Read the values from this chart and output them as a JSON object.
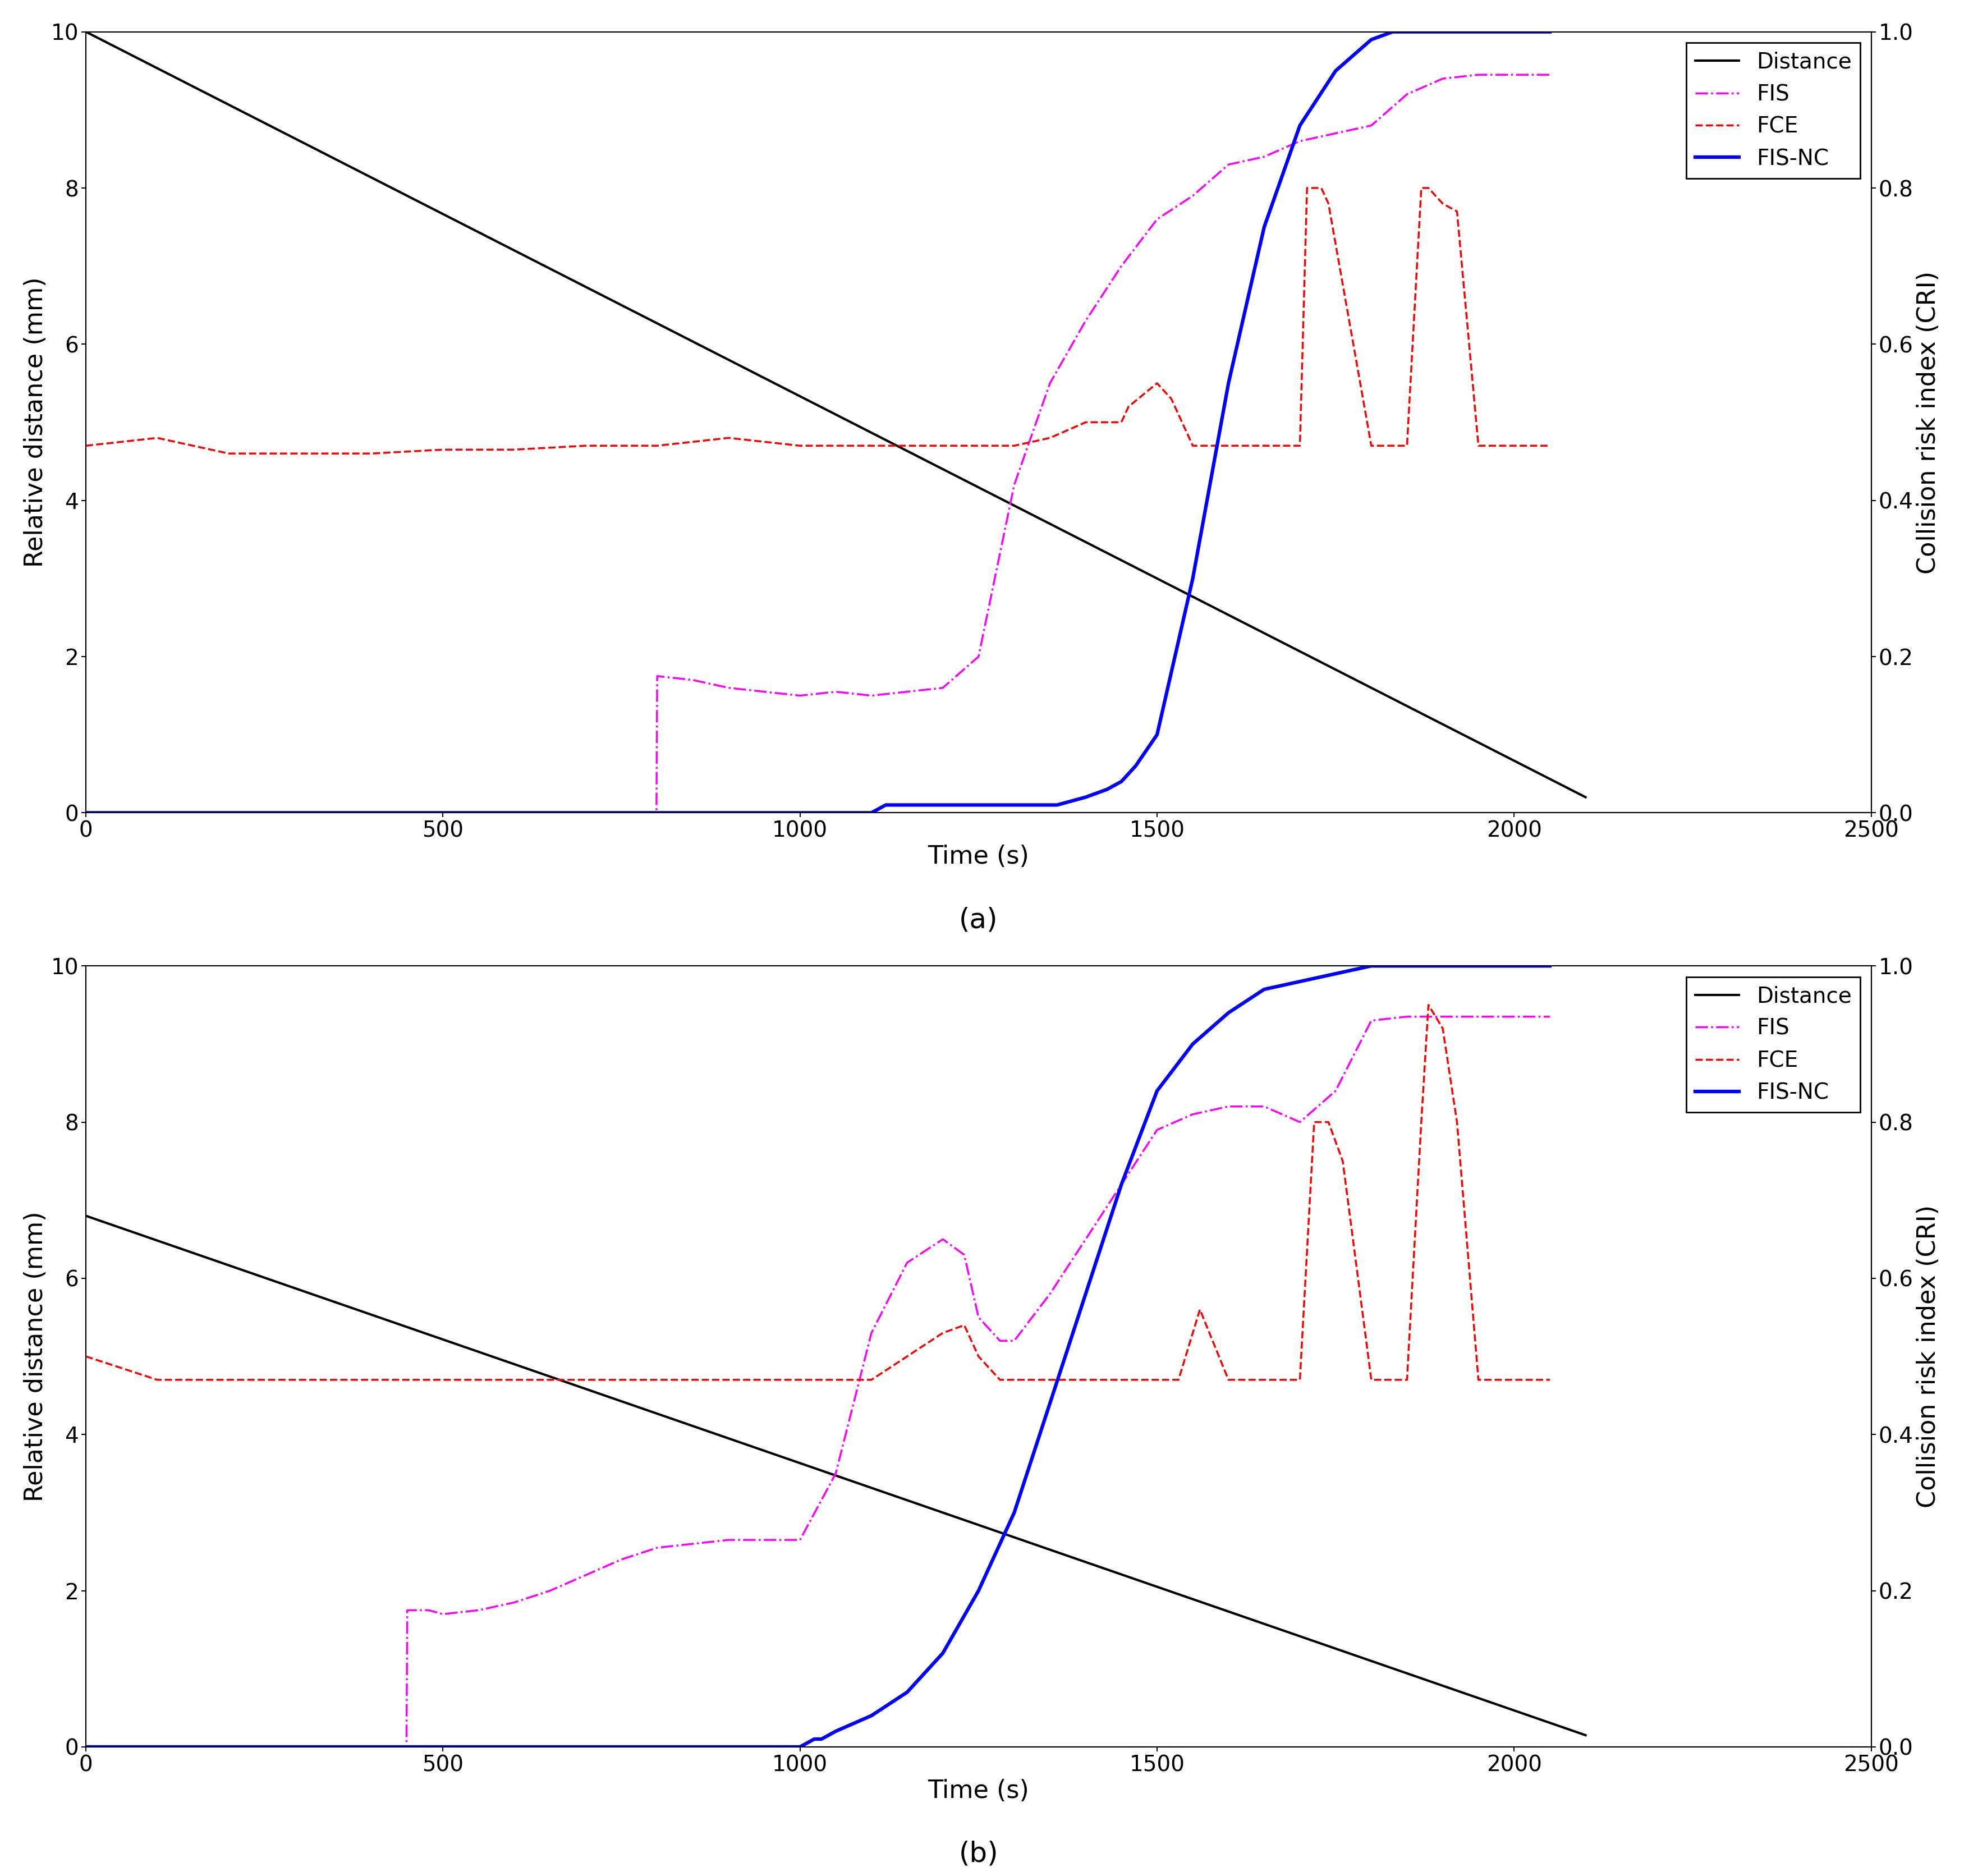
{
  "subplot_a": {
    "distance": {
      "x": [
        0,
        2100
      ],
      "y": [
        10.0,
        0.2
      ]
    },
    "FIS": {
      "x": [
        0,
        799,
        800,
        850,
        900,
        950,
        1000,
        1050,
        1100,
        1150,
        1200,
        1250,
        1300,
        1350,
        1400,
        1450,
        1500,
        1550,
        1600,
        1650,
        1700,
        1750,
        1800,
        1850,
        1900,
        1950,
        2000,
        2050
      ],
      "y": [
        0,
        0,
        0.175,
        0.17,
        0.16,
        0.155,
        0.15,
        0.155,
        0.15,
        0.155,
        0.16,
        0.2,
        0.42,
        0.55,
        0.63,
        0.7,
        0.76,
        0.79,
        0.83,
        0.84,
        0.86,
        0.87,
        0.88,
        0.92,
        0.94,
        0.945,
        0.945,
        0.945
      ]
    },
    "FCE": {
      "x": [
        0,
        100,
        200,
        250,
        300,
        400,
        500,
        600,
        700,
        750,
        800,
        900,
        1000,
        1050,
        1100,
        1150,
        1200,
        1250,
        1300,
        1350,
        1400,
        1440,
        1450,
        1460,
        1500,
        1520,
        1550,
        1560,
        1600,
        1650,
        1700,
        1710,
        1730,
        1740,
        1800,
        1850,
        1870,
        1880,
        1900,
        1920,
        1950,
        1980,
        2000,
        2050
      ],
      "y": [
        0.47,
        0.48,
        0.46,
        0.46,
        0.46,
        0.46,
        0.465,
        0.465,
        0.47,
        0.47,
        0.47,
        0.48,
        0.47,
        0.47,
        0.47,
        0.47,
        0.47,
        0.47,
        0.47,
        0.48,
        0.5,
        0.5,
        0.5,
        0.52,
        0.55,
        0.53,
        0.47,
        0.47,
        0.47,
        0.47,
        0.47,
        0.8,
        0.8,
        0.78,
        0.47,
        0.47,
        0.8,
        0.8,
        0.78,
        0.77,
        0.47,
        0.47,
        0.47,
        0.47
      ]
    },
    "FIS_NC": {
      "x": [
        0,
        1100,
        1110,
        1120,
        1130,
        1350,
        1360,
        1380,
        1400,
        1430,
        1450,
        1470,
        1500,
        1550,
        1600,
        1650,
        1700,
        1750,
        1800,
        1830,
        1850,
        1900,
        1950,
        2000,
        2050
      ],
      "y": [
        0,
        0,
        0.005,
        0.01,
        0.01,
        0.01,
        0.01,
        0.015,
        0.02,
        0.03,
        0.04,
        0.06,
        0.1,
        0.3,
        0.55,
        0.75,
        0.88,
        0.95,
        0.99,
        1.0,
        1.0,
        1.0,
        1.0,
        1.0,
        1.0
      ]
    },
    "ylim_left": [
      0,
      10
    ],
    "ylim_right": [
      0,
      1
    ],
    "xlabel": "Time (s)",
    "ylabel_left": "Relative distance (mm)",
    "ylabel_right": "Collision risk index (CRI)",
    "xlim": [
      0,
      2500
    ],
    "xticks": [
      0,
      500,
      1000,
      1500,
      2000,
      2500
    ],
    "yticks_left": [
      0,
      2,
      4,
      6,
      8,
      10
    ],
    "yticks_right": [
      0,
      0.2,
      0.4,
      0.6,
      0.8,
      1.0
    ],
    "label": "(a)"
  },
  "subplot_b": {
    "distance": {
      "x": [
        0,
        2100
      ],
      "y": [
        6.8,
        0.15
      ]
    },
    "FIS": {
      "x": [
        0,
        449,
        450,
        480,
        500,
        550,
        600,
        650,
        700,
        750,
        800,
        850,
        900,
        950,
        1000,
        1050,
        1100,
        1150,
        1200,
        1230,
        1250,
        1280,
        1300,
        1350,
        1400,
        1450,
        1500,
        1550,
        1600,
        1650,
        1700,
        1750,
        1800,
        1850,
        1900,
        1950,
        2000,
        2050
      ],
      "y": [
        0,
        0,
        0.175,
        0.175,
        0.17,
        0.175,
        0.185,
        0.2,
        0.22,
        0.24,
        0.255,
        0.26,
        0.265,
        0.265,
        0.265,
        0.35,
        0.53,
        0.62,
        0.65,
        0.63,
        0.55,
        0.52,
        0.52,
        0.58,
        0.65,
        0.72,
        0.79,
        0.81,
        0.82,
        0.82,
        0.8,
        0.84,
        0.93,
        0.935,
        0.935,
        0.935,
        0.935,
        0.935
      ]
    },
    "FCE": {
      "x": [
        0,
        100,
        200,
        300,
        400,
        500,
        600,
        700,
        800,
        900,
        1000,
        1050,
        1100,
        1150,
        1200,
        1230,
        1250,
        1280,
        1300,
        1350,
        1380,
        1400,
        1430,
        1450,
        1460,
        1500,
        1530,
        1560,
        1600,
        1650,
        1700,
        1720,
        1740,
        1760,
        1800,
        1850,
        1870,
        1880,
        1900,
        1920,
        1950,
        1980,
        2000,
        2050
      ],
      "y": [
        0.5,
        0.47,
        0.47,
        0.47,
        0.47,
        0.47,
        0.47,
        0.47,
        0.47,
        0.47,
        0.47,
        0.47,
        0.47,
        0.5,
        0.53,
        0.54,
        0.5,
        0.47,
        0.47,
        0.47,
        0.47,
        0.47,
        0.47,
        0.47,
        0.47,
        0.47,
        0.47,
        0.56,
        0.47,
        0.47,
        0.47,
        0.8,
        0.8,
        0.75,
        0.47,
        0.47,
        0.8,
        0.95,
        0.92,
        0.8,
        0.47,
        0.47,
        0.47,
        0.47
      ]
    },
    "FIS_NC": {
      "x": [
        0,
        1000,
        1010,
        1020,
        1030,
        1040,
        1050,
        1100,
        1150,
        1200,
        1250,
        1300,
        1350,
        1400,
        1450,
        1500,
        1550,
        1600,
        1650,
        1700,
        1750,
        1800,
        1850,
        1900,
        1950,
        2000,
        2050
      ],
      "y": [
        0,
        0,
        0.005,
        0.01,
        0.01,
        0.015,
        0.02,
        0.04,
        0.07,
        0.12,
        0.2,
        0.3,
        0.44,
        0.58,
        0.72,
        0.84,
        0.9,
        0.94,
        0.97,
        0.98,
        0.99,
        1.0,
        1.0,
        1.0,
        1.0,
        1.0,
        1.0
      ]
    },
    "ylim_left": [
      0,
      10
    ],
    "ylim_right": [
      0,
      1
    ],
    "xlabel": "Time (s)",
    "ylabel_left": "Relative distance (mm)",
    "ylabel_right": "Collision risk index (CRI)",
    "xlim": [
      0,
      2500
    ],
    "xticks": [
      0,
      500,
      1000,
      1500,
      2000,
      2500
    ],
    "yticks_left": [
      0,
      2,
      4,
      6,
      8,
      10
    ],
    "yticks_right": [
      0,
      0.2,
      0.4,
      0.6,
      0.8,
      1.0
    ],
    "label": "(b)"
  },
  "colors": {
    "distance": "#000000",
    "FIS": "#FF00FF",
    "FCE": "#FF0000",
    "FIS_NC": "#0000FF"
  },
  "linestyles": {
    "distance": "-",
    "FIS": "-.",
    "FCE": "--",
    "FIS_NC": "-"
  },
  "linewidths": {
    "distance": 3.0,
    "FIS": 2.5,
    "FCE": 2.5,
    "FIS_NC": 4.5
  },
  "legend_labels": [
    "Distance",
    "FIS",
    "FCE",
    "FIS-NC"
  ],
  "label_font_size": 32,
  "tick_font_size": 28,
  "legend_font_size": 28,
  "sublabel_font_size": 36
}
